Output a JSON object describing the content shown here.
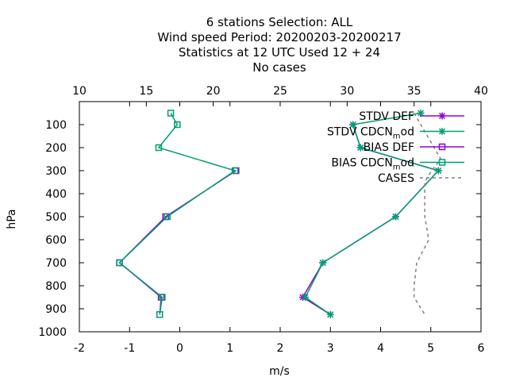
{
  "chart_data": {
    "type": "line",
    "title_lines": [
      "6 stations Selection: ALL",
      "Wind speed  Period: 20200203-20200217",
      "Statistics at 12 UTC  Used  12 + 24",
      "No cases"
    ],
    "xlabel": "m/s",
    "ylabel": "hPa",
    "x_bottom": {
      "range": [
        -2,
        6
      ],
      "ticks": [
        "-2",
        "-1",
        "0",
        "1",
        "2",
        "3",
        "4",
        "5",
        "6"
      ]
    },
    "x_top": {
      "range": [
        10,
        40
      ],
      "ticks": [
        "10",
        "15",
        "20",
        "25",
        "30",
        "35",
        "40"
      ]
    },
    "y": {
      "range": [
        1000,
        0
      ],
      "ticks": [
        "100",
        "200",
        "300",
        "400",
        "500",
        "600",
        "700",
        "800",
        "900",
        "1000"
      ]
    },
    "grid": false,
    "legend_placement": "top-right",
    "series": [
      {
        "name": "STDV DEF",
        "color": "#9400d3",
        "marker": "cross",
        "x": [
          3.45,
          3.6,
          5.15,
          4.3,
          2.85,
          2.45,
          3.0
        ],
        "y": [
          100,
          200,
          300,
          500,
          700,
          850,
          925
        ]
      },
      {
        "name": "STDV CDCN_mod",
        "label_main": "STDV CDCN",
        "label_sub": "m",
        "label_tail": "od",
        "color": "#009e73",
        "marker": "cross",
        "x": [
          4.8,
          3.45,
          3.6,
          5.15,
          4.3,
          2.85,
          2.5,
          3.0
        ],
        "y": [
          50,
          100,
          200,
          300,
          500,
          700,
          850,
          925
        ]
      },
      {
        "name": "BIAS DEF",
        "color": "#9400d3",
        "marker": "square",
        "x": [
          1.12,
          -0.28,
          -1.2,
          -0.37,
          -0.4
        ],
        "y": [
          300,
          500,
          700,
          850,
          925
        ]
      },
      {
        "name": "BIAS CDCN_mod",
        "label_main": "BIAS CDCN",
        "label_sub": "m",
        "label_tail": "od",
        "color": "#009e73",
        "marker": "square",
        "x": [
          -0.18,
          -0.05,
          -0.42,
          1.1,
          -0.25,
          -1.2,
          -0.35,
          -0.4
        ],
        "y": [
          50,
          100,
          200,
          300,
          500,
          700,
          850,
          925
        ]
      },
      {
        "name": "CASES",
        "color": "#808080",
        "dashed": true,
        "axis": "top",
        "x": [
          35,
          35.5,
          36.5,
          37,
          36.3,
          35.8,
          35.8,
          36.1,
          35.2,
          35.0,
          35.0,
          35.8
        ],
        "y": [
          50,
          100,
          200,
          250,
          300,
          350,
          500,
          600,
          700,
          800,
          850,
          925
        ]
      }
    ]
  }
}
